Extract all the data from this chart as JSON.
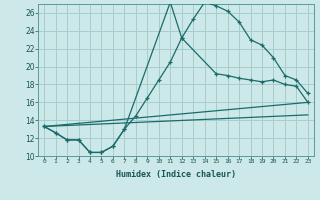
{
  "xlabel": "Humidex (Indice chaleur)",
  "bg_color": "#cce8e8",
  "grid_color": "#a8cccc",
  "line_color": "#1a6b6b",
  "xlim": [
    -0.5,
    23.5
  ],
  "ylim": [
    10,
    27
  ],
  "xticks": [
    0,
    1,
    2,
    3,
    4,
    5,
    6,
    7,
    8,
    9,
    10,
    11,
    12,
    13,
    14,
    15,
    16,
    17,
    18,
    19,
    20,
    21,
    22,
    23
  ],
  "yticks": [
    10,
    12,
    14,
    16,
    18,
    20,
    22,
    24,
    26
  ],
  "line1_x": [
    0,
    1,
    2,
    3,
    4,
    5,
    6,
    7,
    8,
    9,
    10,
    11,
    12,
    13,
    14,
    15,
    16,
    17,
    18,
    19,
    20,
    21,
    22,
    23
  ],
  "line1_y": [
    13.3,
    12.6,
    11.8,
    11.8,
    10.4,
    10.4,
    11.1,
    13.0,
    14.5,
    16.5,
    18.5,
    20.5,
    23.2,
    25.3,
    27.2,
    26.8,
    26.2,
    25.0,
    23.0,
    22.4,
    21.0,
    19.0,
    18.5,
    17.0
  ],
  "line2_x": [
    0,
    1,
    2,
    3,
    4,
    5,
    6,
    7,
    11,
    12,
    15,
    16,
    17,
    18,
    19,
    20,
    21,
    22,
    23
  ],
  "line2_y": [
    13.3,
    12.6,
    11.8,
    11.8,
    10.4,
    10.4,
    11.1,
    13.0,
    27.2,
    23.2,
    19.2,
    19.0,
    18.7,
    18.5,
    18.3,
    18.5,
    18.0,
    17.8,
    16.0
  ],
  "line3_x": [
    0,
    23
  ],
  "line3_y": [
    13.3,
    16.0
  ],
  "line4_x": [
    0,
    23
  ],
  "line4_y": [
    13.3,
    14.6
  ]
}
